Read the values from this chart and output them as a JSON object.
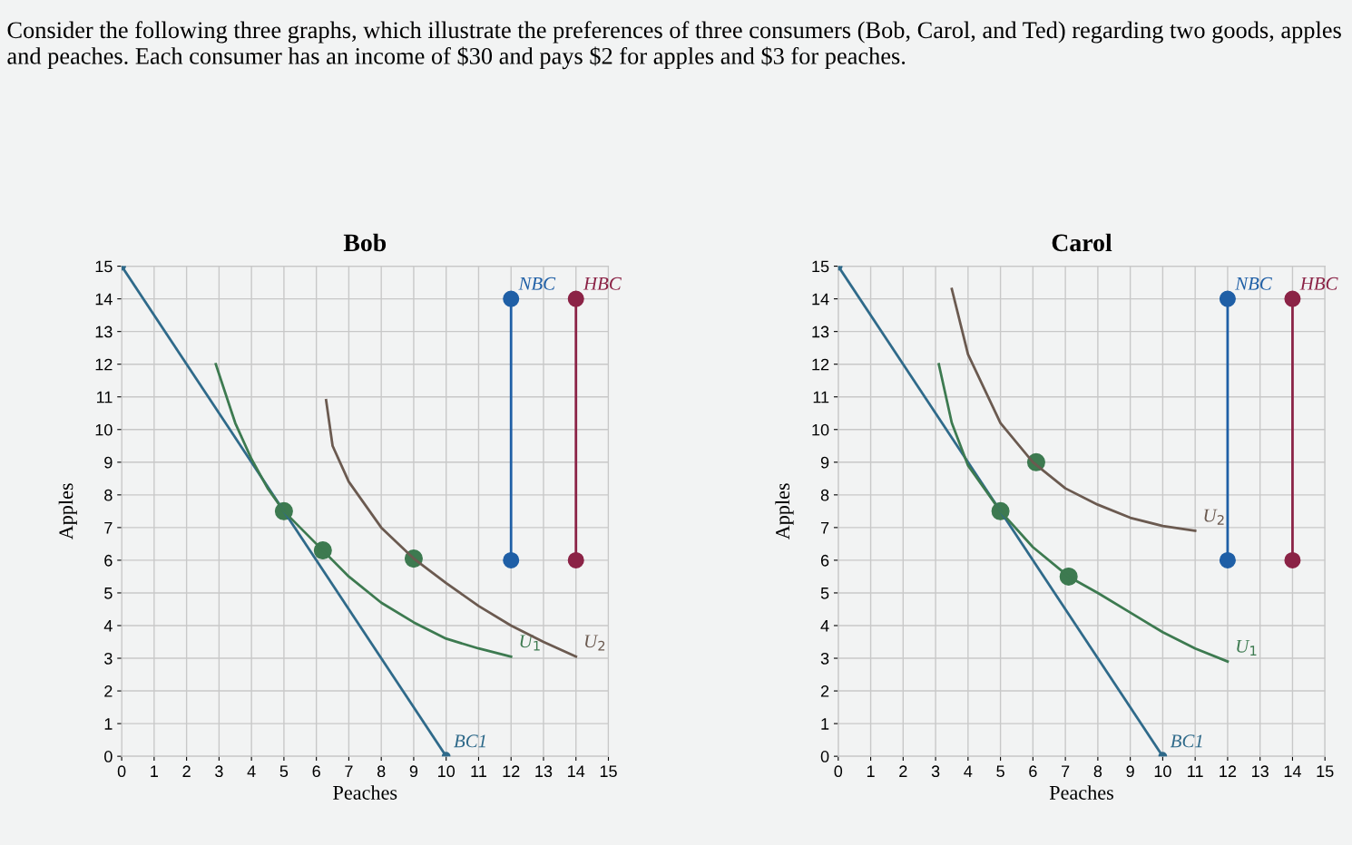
{
  "chart_data": [
    {
      "type": "line",
      "title": "Bob",
      "xlabel": "Peaches",
      "ylabel": "Apples",
      "xlim": [
        0,
        15
      ],
      "ylim": [
        0,
        15
      ],
      "xticks": [
        0,
        1,
        2,
        3,
        4,
        5,
        6,
        7,
        8,
        9,
        10,
        11,
        12,
        13,
        14,
        15
      ],
      "yticks": [
        0,
        1,
        2,
        3,
        4,
        5,
        6,
        7,
        8,
        9,
        10,
        11,
        12,
        13,
        14,
        15
      ],
      "grid": true,
      "annotations": [
        "Consider the following three graphs, which illustrate the preferences of three consumers (Bob, Carol, and Ted) regarding two goods, apples and peaches. Each consumer has an income of $30 and pays $2 for apples and $3 for peaches."
      ],
      "series": [
        {
          "name": "BC1",
          "color": "#2f6a8a",
          "marker": "circle",
          "x": [
            0,
            10
          ],
          "values": [
            15,
            0
          ]
        },
        {
          "name": "U$_{1}$",
          "color": "#3d7a50",
          "x": [
            2.9,
            3.5,
            4,
            4.5,
            5,
            6.2,
            7,
            8,
            9,
            10,
            11,
            12
          ],
          "values": [
            12,
            10.2,
            9.1,
            8.2,
            7.5,
            6.3,
            5.5,
            4.7,
            4.1,
            3.6,
            3.3,
            3.05
          ]
        },
        {
          "name": "U$_{2}$",
          "color": "#6b5a50",
          "x": [
            6.3,
            6.5,
            7,
            8,
            9,
            10,
            11,
            12,
            13,
            14
          ],
          "values": [
            10.9,
            9.5,
            8.4,
            7,
            6.05,
            5.3,
            4.6,
            4,
            3.5,
            3.05
          ]
        },
        {
          "type": "scatter",
          "color": "#3d7a50",
          "x": [
            5,
            6.2,
            9
          ],
          "values": [
            7.5,
            6.3,
            6.05
          ]
        },
        {
          "name": "NBC",
          "color": "#1f5fa6",
          "marker": "circle",
          "x": [
            12,
            12
          ],
          "values": [
            6,
            14
          ]
        },
        {
          "name": "HBC",
          "color": "#8b2346",
          "marker": "circle",
          "x": [
            14,
            14
          ],
          "values": [
            6,
            14
          ]
        }
      ]
    },
    {
      "type": "line",
      "title": "Carol",
      "xlabel": "Peaches",
      "ylabel": "Apples",
      "xlim": [
        0,
        15
      ],
      "ylim": [
        0,
        15
      ],
      "xticks": [
        0,
        1,
        2,
        3,
        4,
        5,
        6,
        7,
        8,
        9,
        10,
        11,
        12,
        13,
        14,
        15
      ],
      "yticks": [
        0,
        1,
        2,
        3,
        4,
        5,
        6,
        7,
        8,
        9,
        10,
        11,
        12,
        13,
        14,
        15
      ],
      "grid": true,
      "series": [
        {
          "name": "BC1",
          "color": "#2f6a8a",
          "marker": "circle",
          "x": [
            0,
            10
          ],
          "values": [
            15,
            0
          ]
        },
        {
          "name": "U$_{1}$",
          "color": "#3d7a50",
          "x": [
            3.1,
            3.5,
            4,
            5,
            6,
            7.1,
            8,
            9,
            10,
            11,
            12
          ],
          "values": [
            12,
            10.2,
            8.9,
            7.5,
            6.4,
            5.5,
            5,
            4.4,
            3.8,
            3.3,
            2.9
          ]
        },
        {
          "name": "U$_{2}$",
          "color": "#6b5a50",
          "x": [
            3.5,
            4,
            5,
            6,
            7,
            8,
            9,
            10,
            11
          ],
          "values": [
            14.3,
            12.3,
            10.2,
            9,
            8.2,
            7.7,
            7.3,
            7.05,
            6.9
          ]
        },
        {
          "type": "scatter",
          "color": "#3d7a50",
          "x": [
            5,
            7.1,
            6.1
          ],
          "values": [
            7.5,
            5.5,
            9
          ]
        },
        {
          "name": "NBC",
          "color": "#1f5fa6",
          "marker": "circle",
          "x": [
            12,
            12
          ],
          "values": [
            6,
            14
          ]
        },
        {
          "name": "HBC",
          "color": "#8b2346",
          "marker": "circle",
          "x": [
            14,
            14
          ],
          "values": [
            6,
            14
          ]
        }
      ]
    }
  ]
}
